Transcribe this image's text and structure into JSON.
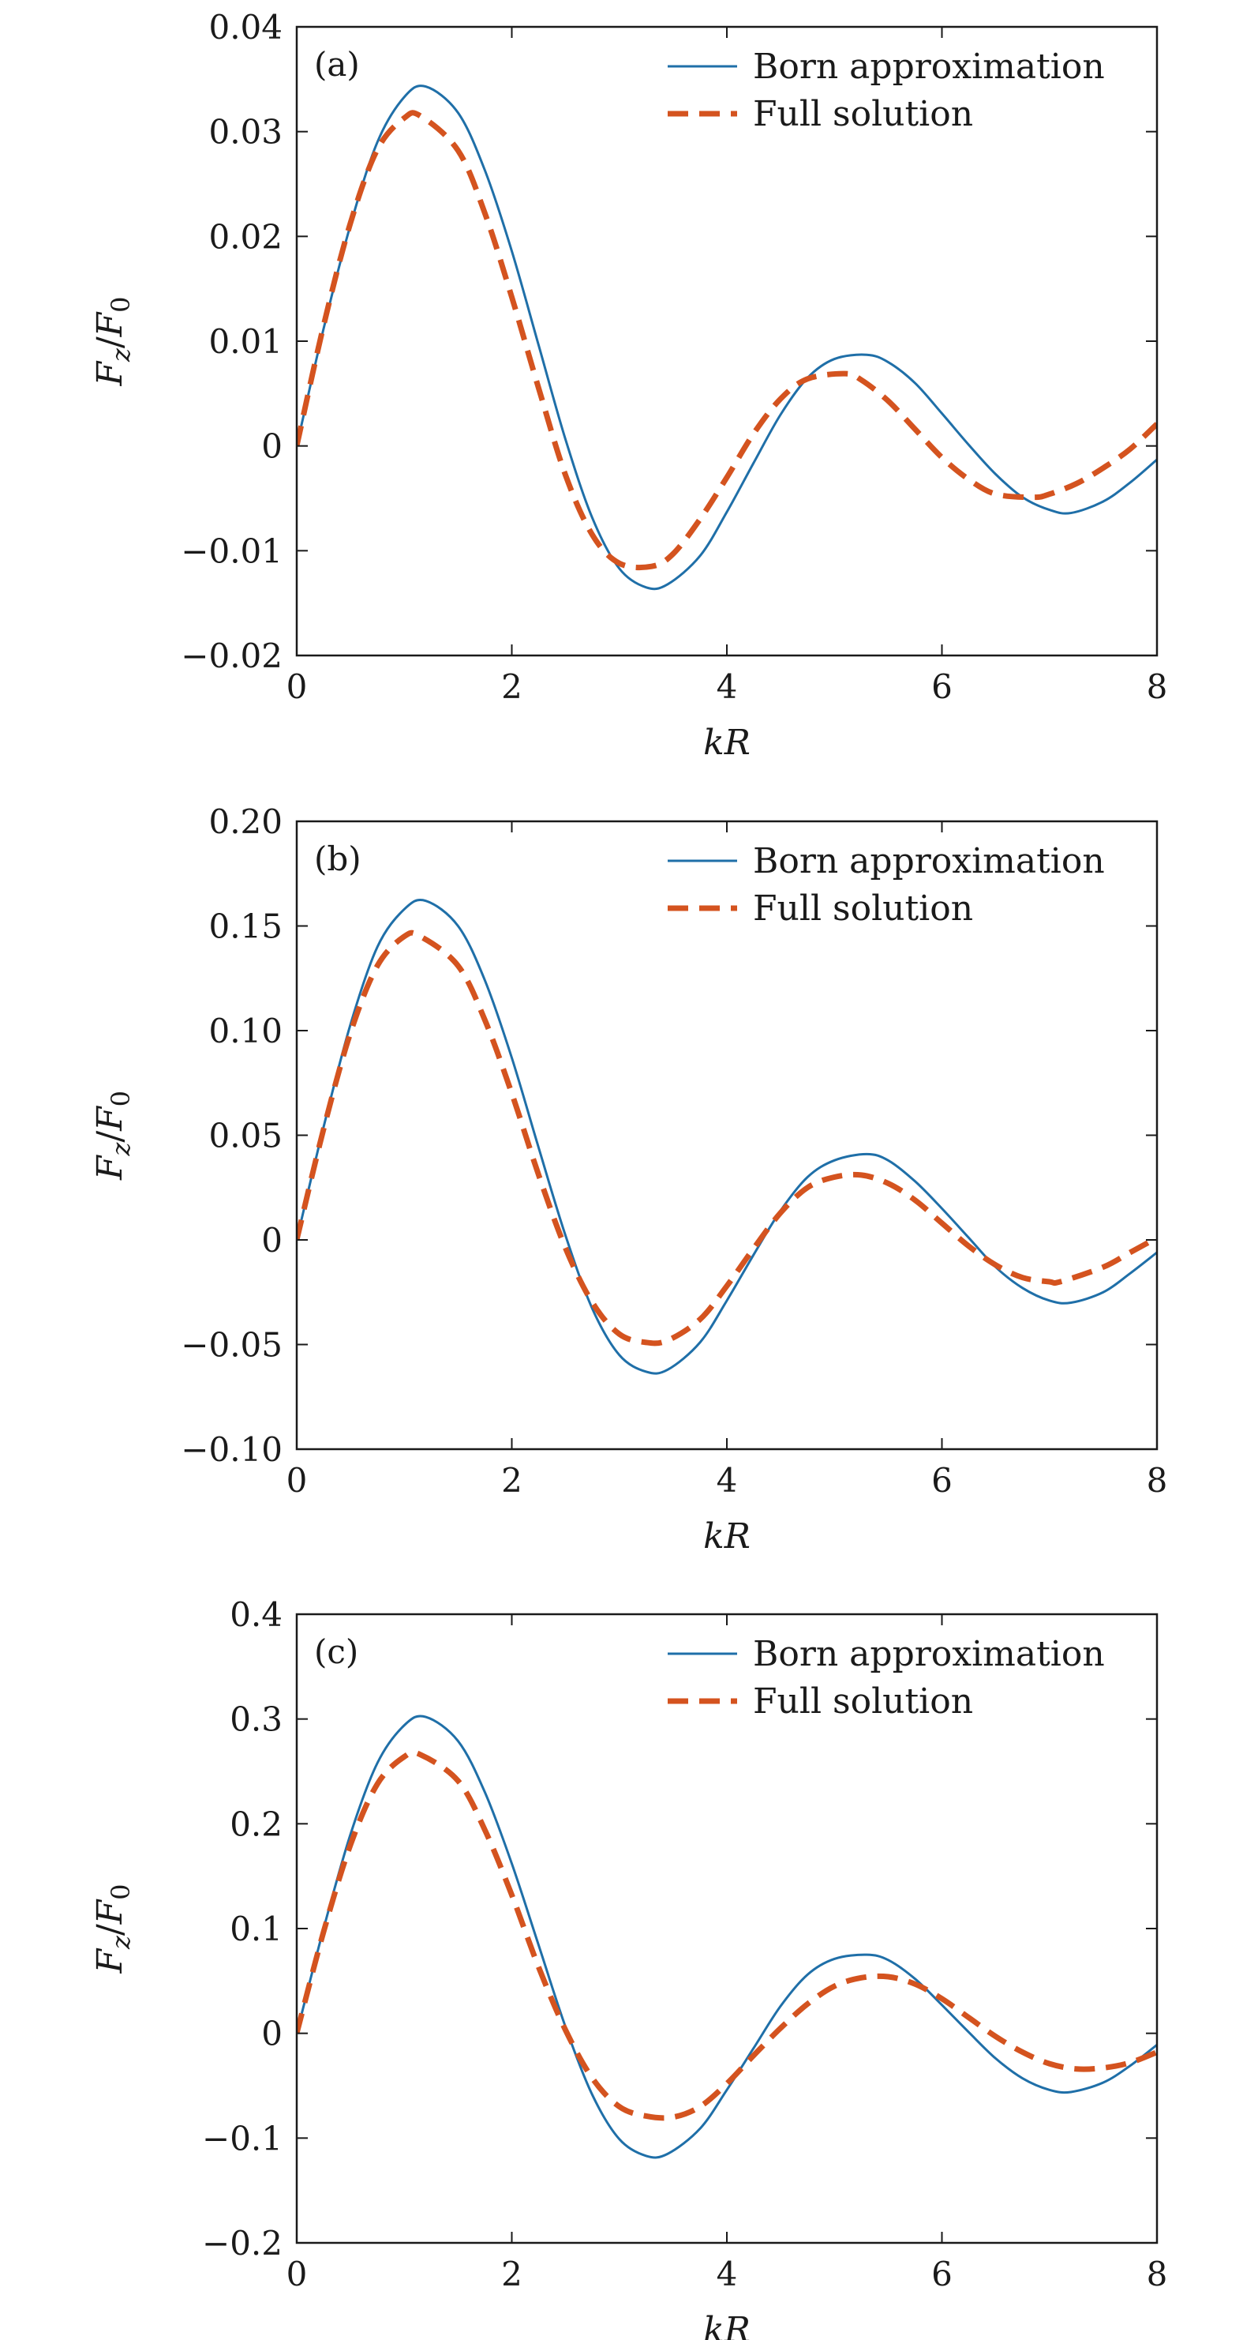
{
  "chart_data": [
    {
      "type": "line",
      "panel_label": "(a)",
      "xlabel": "kR",
      "ylabel": "Fz/F0",
      "ylabel_parts": {
        "base": "F",
        "sub1": "z",
        "sep": "/",
        "base2": "F",
        "sub2": "0"
      },
      "xlim": [
        0,
        8
      ],
      "ylim": [
        -0.02,
        0.04
      ],
      "xticks": [
        0,
        2,
        4,
        6,
        8
      ],
      "xtick_labels": [
        "0",
        "2",
        "4",
        "6",
        "8"
      ],
      "yticks": [
        -0.02,
        -0.01,
        0,
        0.01,
        0.02,
        0.03,
        0.04
      ],
      "ytick_labels": [
        "−0.02",
        "−0.01",
        "0",
        "0.01",
        "0.02",
        "0.03",
        "0.04"
      ],
      "legend_position": "top-right",
      "grid": false,
      "series": [
        {
          "name": "Born approximation",
          "style": "solid",
          "color": "#1f6fa8",
          "x": [
            0,
            0.25,
            0.5,
            0.75,
            1.0,
            1.2,
            1.5,
            1.75,
            2.0,
            2.25,
            2.5,
            2.75,
            3.0,
            3.25,
            3.45,
            3.75,
            4.0,
            4.25,
            4.5,
            4.75,
            5.0,
            5.3,
            5.5,
            5.75,
            6.0,
            6.25,
            6.5,
            6.75,
            7.0,
            7.2,
            7.5,
            7.75,
            8.0
          ],
          "y": [
            0.0,
            0.0112,
            0.0211,
            0.029,
            0.0333,
            0.0343,
            0.0318,
            0.0263,
            0.0186,
            0.0096,
            0.0006,
            -0.0069,
            -0.0117,
            -0.0135,
            -0.0132,
            -0.0105,
            -0.0063,
            -0.0016,
            0.003,
            0.0065,
            0.0083,
            0.0087,
            0.008,
            0.006,
            0.0031,
            0.0001,
            -0.0027,
            -0.0049,
            -0.0061,
            -0.0064,
            -0.0053,
            -0.0035,
            -0.0013
          ]
        },
        {
          "name": "Full solution",
          "style": "dashed",
          "color": "#d4531f",
          "x": [
            0,
            0.25,
            0.5,
            0.75,
            1.0,
            1.15,
            1.5,
            1.75,
            2.0,
            2.25,
            2.5,
            2.75,
            3.0,
            3.3,
            3.5,
            3.75,
            4.0,
            4.25,
            4.5,
            4.75,
            5.1,
            5.25,
            5.5,
            5.75,
            6.0,
            6.25,
            6.5,
            6.85,
            7.0,
            7.25,
            7.5,
            7.75,
            8.0
          ],
          "y": [
            0.0,
            0.0115,
            0.0213,
            0.0283,
            0.0313,
            0.0315,
            0.0282,
            0.0222,
            0.0142,
            0.0055,
            -0.0028,
            -0.0085,
            -0.0112,
            -0.0115,
            -0.0103,
            -0.007,
            -0.003,
            0.0012,
            0.0045,
            0.0064,
            0.0069,
            0.0063,
            0.0043,
            0.0016,
            -0.0011,
            -0.0032,
            -0.0046,
            -0.0049,
            -0.0046,
            -0.0036,
            -0.0021,
            -0.0003,
            0.0021
          ]
        }
      ]
    },
    {
      "type": "line",
      "panel_label": "(b)",
      "xlabel": "kR",
      "ylabel": "Fz/F0",
      "ylabel_parts": {
        "base": "F",
        "sub1": "z",
        "sep": "/",
        "base2": "F",
        "sub2": "0"
      },
      "xlim": [
        0,
        8
      ],
      "ylim": [
        -0.1,
        0.2
      ],
      "xticks": [
        0,
        2,
        4,
        6,
        8
      ],
      "xtick_labels": [
        "0",
        "2",
        "4",
        "6",
        "8"
      ],
      "yticks": [
        -0.1,
        -0.05,
        0,
        0.05,
        0.1,
        0.15,
        0.2
      ],
      "ytick_labels": [
        "−0.10",
        "−0.05",
        "0",
        "0.05",
        "0.10",
        "0.15",
        "0.20"
      ],
      "legend_position": "top-right",
      "grid": false,
      "series": [
        {
          "name": "Born approximation",
          "style": "solid",
          "color": "#1f6fa8",
          "x": [
            0,
            0.25,
            0.5,
            0.75,
            1.0,
            1.2,
            1.5,
            1.75,
            2.0,
            2.25,
            2.5,
            2.75,
            3.0,
            3.25,
            3.45,
            3.75,
            4.0,
            4.25,
            4.5,
            4.75,
            5.0,
            5.3,
            5.5,
            5.75,
            6.0,
            6.25,
            6.5,
            6.75,
            7.0,
            7.2,
            7.5,
            7.75,
            8.0
          ],
          "y": [
            0.0,
            0.054,
            0.103,
            0.14,
            0.158,
            0.162,
            0.15,
            0.124,
            0.087,
            0.044,
            0.002,
            -0.033,
            -0.055,
            -0.063,
            -0.062,
            -0.049,
            -0.029,
            -0.007,
            0.014,
            0.03,
            0.038,
            0.041,
            0.038,
            0.028,
            0.015,
            0.001,
            -0.013,
            -0.023,
            -0.029,
            -0.03,
            -0.025,
            -0.016,
            -0.006
          ]
        },
        {
          "name": "Full solution",
          "style": "dashed",
          "color": "#d4531f",
          "x": [
            0,
            0.25,
            0.5,
            0.75,
            1.0,
            1.15,
            1.5,
            1.75,
            2.0,
            2.25,
            2.5,
            2.75,
            3.0,
            3.25,
            3.45,
            3.75,
            4.0,
            4.25,
            4.5,
            4.75,
            5.0,
            5.25,
            5.5,
            5.75,
            6.0,
            6.25,
            6.5,
            6.75,
            7.0,
            7.1,
            7.5,
            7.75,
            8.0
          ],
          "y": [
            0.0,
            0.053,
            0.099,
            0.131,
            0.145,
            0.145,
            0.131,
            0.105,
            0.07,
            0.031,
            -0.004,
            -0.03,
            -0.045,
            -0.049,
            -0.048,
            -0.038,
            -0.022,
            -0.004,
            0.013,
            0.025,
            0.03,
            0.031,
            0.027,
            0.019,
            0.008,
            -0.003,
            -0.012,
            -0.018,
            -0.02,
            -0.02,
            -0.013,
            -0.006,
            0.001
          ]
        }
      ]
    },
    {
      "type": "line",
      "panel_label": "(c)",
      "xlabel": "kR",
      "ylabel": "Fz/F0",
      "ylabel_parts": {
        "base": "F",
        "sub1": "z",
        "sep": "/",
        "base2": "F",
        "sub2": "0"
      },
      "xlim": [
        0,
        8
      ],
      "ylim": [
        -0.2,
        0.4
      ],
      "xticks": [
        0,
        2,
        4,
        6,
        8
      ],
      "xtick_labels": [
        "0",
        "2",
        "4",
        "6",
        "8"
      ],
      "yticks": [
        -0.2,
        -0.1,
        0,
        0.1,
        0.2,
        0.3,
        0.4
      ],
      "ytick_labels": [
        "−0.2",
        "−0.1",
        "0",
        "0.1",
        "0.2",
        "0.3",
        "0.4"
      ],
      "legend_position": "top-right",
      "grid": false,
      "series": [
        {
          "name": "Born approximation",
          "style": "solid",
          "color": "#1f6fa8",
          "x": [
            0,
            0.25,
            0.5,
            0.75,
            1.0,
            1.2,
            1.5,
            1.75,
            2.0,
            2.25,
            2.5,
            2.75,
            3.0,
            3.25,
            3.45,
            3.75,
            4.0,
            4.25,
            4.5,
            4.75,
            5.0,
            5.3,
            5.5,
            5.75,
            6.0,
            6.25,
            6.5,
            6.75,
            7.0,
            7.2,
            7.5,
            7.75,
            8.0
          ],
          "y": [
            0.0,
            0.1,
            0.19,
            0.258,
            0.294,
            0.302,
            0.279,
            0.23,
            0.162,
            0.084,
            0.006,
            -0.059,
            -0.101,
            -0.117,
            -0.115,
            -0.091,
            -0.054,
            -0.014,
            0.026,
            0.056,
            0.071,
            0.075,
            0.07,
            0.052,
            0.027,
            0.001,
            -0.024,
            -0.043,
            -0.054,
            -0.056,
            -0.047,
            -0.031,
            -0.011
          ]
        },
        {
          "name": "Full solution",
          "style": "dashed",
          "color": "#d4531f",
          "x": [
            0,
            0.25,
            0.5,
            0.75,
            1.0,
            1.15,
            1.5,
            1.75,
            2.0,
            2.25,
            2.5,
            2.75,
            3.0,
            3.25,
            3.5,
            3.75,
            4.0,
            4.25,
            4.5,
            4.75,
            5.0,
            5.25,
            5.5,
            5.75,
            6.0,
            6.25,
            6.5,
            6.75,
            7.0,
            7.25,
            7.5,
            7.75,
            8.0
          ],
          "y": [
            0.0,
            0.097,
            0.18,
            0.238,
            0.264,
            0.266,
            0.241,
            0.194,
            0.132,
            0.063,
            0.003,
            -0.043,
            -0.07,
            -0.079,
            -0.08,
            -0.07,
            -0.048,
            -0.021,
            0.005,
            0.028,
            0.045,
            0.053,
            0.054,
            0.047,
            0.033,
            0.015,
            -0.003,
            -0.018,
            -0.029,
            -0.034,
            -0.033,
            -0.028,
            -0.018
          ]
        }
      ]
    }
  ]
}
